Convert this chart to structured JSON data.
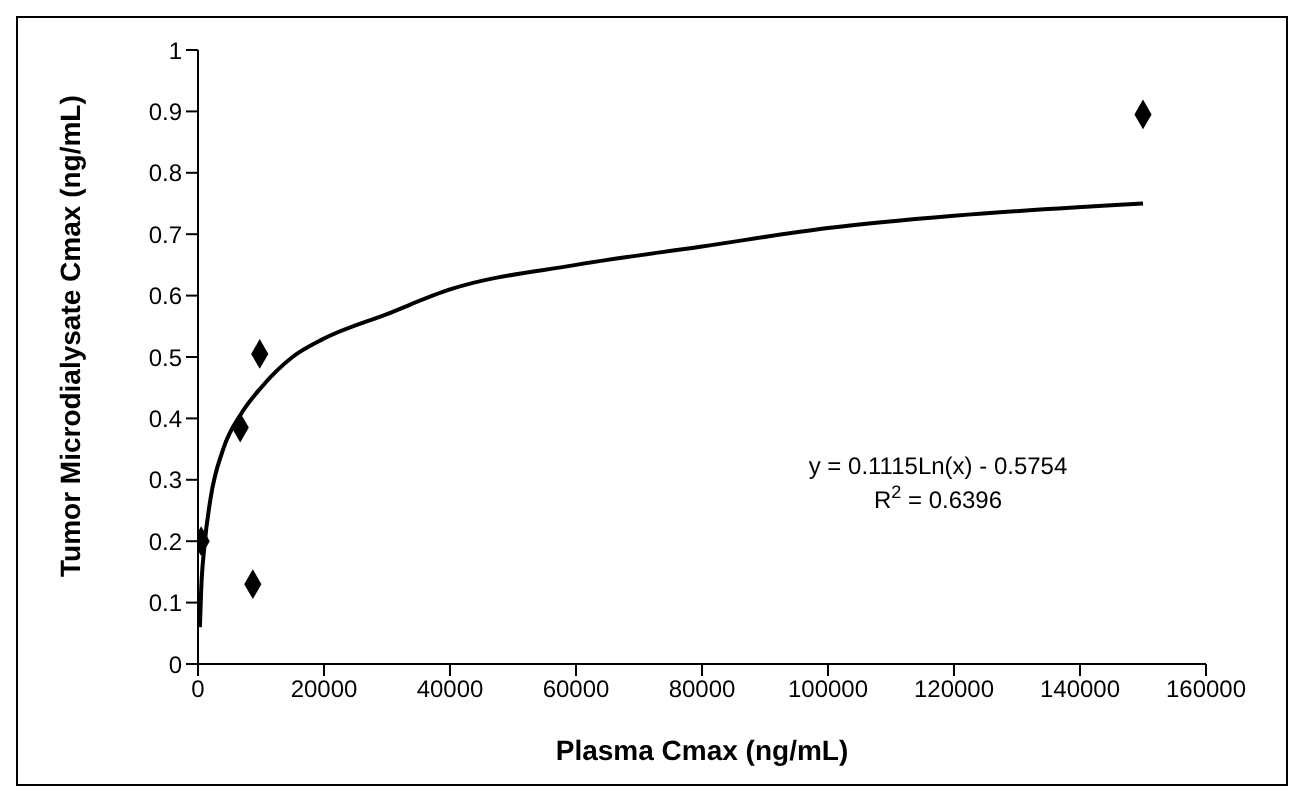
{
  "chart_data": {
    "type": "scatter",
    "xlabel": "Plasma Cmax (ng/mL)",
    "ylabel": "Tumor Microdialysate Cmax (ng/mL)",
    "xlim": [
      0,
      160000
    ],
    "xticks": [
      0,
      20000,
      40000,
      60000,
      80000,
      100000,
      120000,
      140000,
      160000
    ],
    "ylim": [
      0,
      1
    ],
    "yticks": [
      0,
      0.1,
      0.2,
      0.3,
      0.4,
      0.5,
      0.6,
      0.7,
      0.8,
      0.9,
      1
    ],
    "grid": false,
    "marker": "diamond",
    "annotations": [
      "y = 0.1115Ln(x) - 0.5754",
      "R$^{2}$ = 0.6396"
    ],
    "series": [
      {
        "color": "#000000",
        "x": [
          500,
          6700,
          8700,
          9800,
          150000
        ],
        "values": [
          0.2,
          0.385,
          0.13,
          0.505,
          0.895
        ]
      },
      {
        "type": "line",
        "color": "#000000",
        "line_style": "solid",
        "marker": "none",
        "x": [
          300,
          500,
          1000,
          2000,
          4000,
          7000,
          10000,
          15000,
          20000,
          30000,
          40000,
          60000,
          80000,
          100000,
          120000,
          150000
        ],
        "values": [
          0.06,
          0.12,
          0.19,
          0.27,
          0.35,
          0.41,
          0.45,
          0.5,
          0.53,
          0.57,
          0.61,
          0.65,
          0.68,
          0.71,
          0.73,
          0.75
        ]
      }
    ]
  }
}
